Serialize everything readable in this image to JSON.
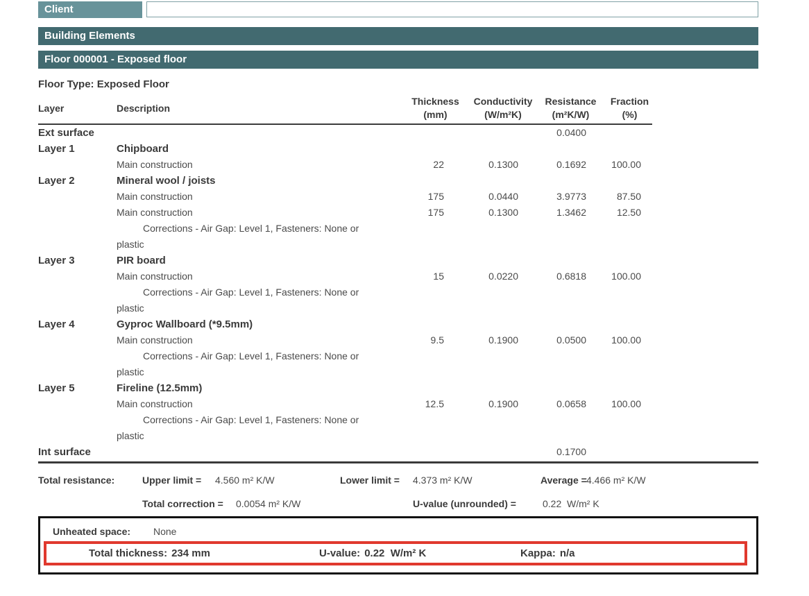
{
  "colors": {
    "header_bar": "#426a70",
    "client_label_bg": "#68939a",
    "highlight_border": "#e0392e",
    "box_border": "#111111"
  },
  "client": {
    "label": "Client",
    "value": ""
  },
  "sections": {
    "building_elements": "Building Elements",
    "floor": "Floor 000001 - Exposed floor"
  },
  "floor_type": "Floor Type: Exposed Floor",
  "table": {
    "headers": {
      "layer": "Layer",
      "description": "Description",
      "thickness": "Thickness",
      "thickness_unit": "(mm)",
      "conductivity": "Conductivity",
      "conductivity_unit": "(W/m²K)",
      "resistance": "Resistance",
      "resistance_unit": "(m²K/W)",
      "fraction": "Fraction",
      "fraction_unit": "(%)"
    },
    "rows": [
      {
        "type": "surface",
        "layer": "Ext surface",
        "resistance": "0.0400"
      },
      {
        "type": "layer",
        "layer": "Layer 1",
        "description": "Chipboard"
      },
      {
        "type": "construction",
        "description": "Main construction",
        "thickness": "22",
        "conductivity": "0.1300",
        "resistance": "0.1692",
        "fraction": "100.00"
      },
      {
        "type": "layer",
        "layer": "Layer 2",
        "description": "Mineral wool / joists"
      },
      {
        "type": "construction",
        "description": "Main construction",
        "thickness": "175",
        "conductivity": "0.0440",
        "resistance": "3.9773",
        "fraction": "87.50"
      },
      {
        "type": "construction",
        "description": "Main construction",
        "thickness": "175",
        "conductivity": "0.1300",
        "resistance": "1.3462",
        "fraction": "12.50"
      },
      {
        "type": "correction",
        "line1": "Corrections - Air Gap: Level 1, Fasteners: None or",
        "line2": "plastic"
      },
      {
        "type": "layer",
        "layer": "Layer 3",
        "description": "PIR board"
      },
      {
        "type": "construction",
        "description": "Main construction",
        "thickness": "15",
        "conductivity": "0.0220",
        "resistance": "0.6818",
        "fraction": "100.00"
      },
      {
        "type": "correction",
        "line1": "Corrections - Air Gap: Level 1, Fasteners: None or",
        "line2": "plastic"
      },
      {
        "type": "layer",
        "layer": "Layer 4",
        "description": "Gyproc Wallboard (*9.5mm)"
      },
      {
        "type": "construction",
        "description": "Main construction",
        "thickness": "9.5",
        "conductivity": "0.1900",
        "resistance": "0.0500",
        "fraction": "100.00"
      },
      {
        "type": "correction",
        "line1": "Corrections - Air Gap: Level 1, Fasteners: None or",
        "line2": "plastic"
      },
      {
        "type": "layer",
        "layer": "Layer 5",
        "description": "Fireline (12.5mm)"
      },
      {
        "type": "construction",
        "description": "Main construction",
        "thickness": "12.5",
        "conductivity": "0.1900",
        "resistance": "0.0658",
        "fraction": "100.00"
      },
      {
        "type": "correction",
        "line1": "Corrections - Air Gap: Level 1, Fasteners: None or",
        "line2": "plastic"
      },
      {
        "type": "surface",
        "layer": "Int surface",
        "resistance": "0.1700"
      }
    ]
  },
  "totals": {
    "label": "Total resistance:",
    "upper_label": "Upper limit =",
    "upper_value": "4.560 m² K/W",
    "lower_label": "Lower limit =",
    "lower_value": "4.373 m² K/W",
    "average_label": "Average =",
    "average_value": "4.466 m² K/W",
    "correction_label": "Total correction =",
    "correction_value": "0.0054 m² K/W",
    "uvalue_label": "U-value (unrounded) =",
    "uvalue_value": "0.22  W/m² K"
  },
  "summary": {
    "unheated_label": "Unheated space:",
    "unheated_value": "None",
    "thickness_label": "Total thickness:",
    "thickness_value": "234 mm",
    "uvalue_label": "U-value:",
    "uvalue_value": "0.22  W/m² K",
    "kappa_label": "Kappa:",
    "kappa_value": "n/a"
  }
}
